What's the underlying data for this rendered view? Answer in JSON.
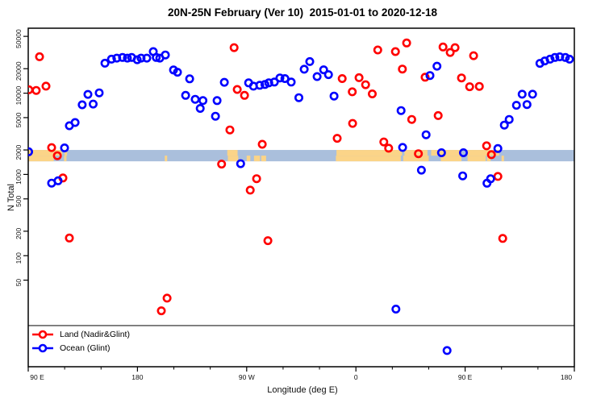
{
  "title": "20N-25N February (Ver 10)  2015-01-01 to 2020-12-18",
  "legend": {
    "items": [
      {
        "label": "Land (Nadir&Glint)",
        "color": "#ff0000"
      },
      {
        "label": "Ocean (Glint)",
        "color": "#0000ff"
      }
    ]
  },
  "chart_data": {
    "type": "scatter",
    "title": "20N-25N February (Ver 10)  2015-01-01 to 2020-12-18",
    "xlabel": "Longitude (deg E)",
    "ylabel": "N Total",
    "marker": {
      "shape": "open-circle",
      "radius": 4.2,
      "stroke_width": 2.6
    },
    "x_axis": {
      "min": 90,
      "max": 540,
      "minor_tick_step": 30,
      "major_ticks": [
        {
          "deg": 90,
          "label": "90 E"
        },
        {
          "deg": 180,
          "label": "180"
        },
        {
          "deg": 270,
          "label": "90 W"
        },
        {
          "deg": 360,
          "label": "0"
        },
        {
          "deg": 450,
          "label": "90 E"
        },
        {
          "deg": 540,
          "label": "180"
        }
      ]
    },
    "y_axis": {
      "scale": "log",
      "ylim": [
        4.3,
        63000
      ],
      "ticks": [
        50000,
        20000,
        10000,
        5000,
        2000,
        1000,
        500,
        200,
        100,
        50
      ]
    },
    "separator_line_value": 13.8,
    "coastline_band": {
      "comment": "thin land/ocean strip map of 20N-25N drawn across the plot",
      "value_top": 2000,
      "value_bottom": 1450,
      "ocean_color": "#aabfdc",
      "land_color": "#fbd488",
      "upper_land_segments_deg": [
        [
          90,
          118
        ],
        [
          120,
          122
        ],
        [
          254,
          262.5
        ],
        [
          344,
          398
        ],
        [
          400,
          419
        ],
        [
          422,
          447
        ],
        [
          452,
          478
        ]
      ],
      "lower_land_segments_deg": [
        [
          90,
          111
        ],
        [
          119.5,
          121.5
        ],
        [
          202.5,
          204.5
        ],
        [
          254.5,
          263
        ],
        [
          270,
          273
        ],
        [
          276,
          281
        ],
        [
          282,
          286
        ],
        [
          343.5,
          397
        ],
        [
          399,
          420
        ],
        [
          430,
          447
        ],
        [
          452,
          467
        ],
        [
          468,
          471
        ],
        [
          480,
          482
        ]
      ]
    },
    "series": [
      {
        "name": "Land (Nadir&Glint)",
        "color": "#ff0000",
        "points": [
          [
            90.5,
            11000
          ],
          [
            96.6,
            10800
          ],
          [
            99.3,
            28100
          ],
          [
            104.6,
            12200
          ],
          [
            109.3,
            2140
          ],
          [
            114.0,
            1700
          ],
          [
            118.6,
            905
          ],
          [
            123.9,
            165
          ],
          [
            199.7,
            21
          ],
          [
            204.4,
            30
          ],
          [
            249.3,
            1340
          ],
          [
            256.2,
            3530
          ],
          [
            259.6,
            36300
          ],
          [
            262.2,
            11100
          ],
          [
            268.2,
            9400
          ],
          [
            272.9,
            640
          ],
          [
            278.2,
            886
          ],
          [
            282.8,
            2350
          ],
          [
            287.5,
            153
          ],
          [
            344.6,
            2780
          ],
          [
            348.7,
            15100
          ],
          [
            357.0,
            10400
          ],
          [
            357.3,
            4250
          ],
          [
            362.6,
            15500
          ],
          [
            368.0,
            12700
          ],
          [
            373.5,
            9800
          ],
          [
            378.0,
            34000
          ],
          [
            383.0,
            2510
          ],
          [
            387.0,
            2100
          ],
          [
            392.6,
            32500
          ],
          [
            398.3,
            19800
          ],
          [
            401.8,
            41500
          ],
          [
            406.0,
            4750
          ],
          [
            411.5,
            1800
          ],
          [
            417.0,
            15700
          ],
          [
            427.8,
            5300
          ],
          [
            431.8,
            37000
          ],
          [
            437.7,
            31700
          ],
          [
            441.7,
            36300
          ],
          [
            447.0,
            15400
          ],
          [
            453.7,
            12000
          ],
          [
            457.0,
            28900
          ],
          [
            461.7,
            12100
          ],
          [
            467.7,
            2250
          ],
          [
            471.7,
            1750
          ],
          [
            477.0,
            945
          ],
          [
            481.0,
            163
          ]
        ]
      },
      {
        "name": "Ocean (Glint)",
        "color": "#0000ff",
        "points": [
          [
            90.3,
            1900
          ],
          [
            109.3,
            782
          ],
          [
            114.6,
            836
          ],
          [
            119.9,
            2120
          ],
          [
            123.9,
            3970
          ],
          [
            128.6,
            4350
          ],
          [
            134.5,
            7200
          ],
          [
            139.2,
            9650
          ],
          [
            143.5,
            7350
          ],
          [
            148.5,
            10100
          ],
          [
            153.2,
            23400
          ],
          [
            158.6,
            26200
          ],
          [
            163.0,
            27000
          ],
          [
            167.7,
            27500
          ],
          [
            171.7,
            27000
          ],
          [
            175.2,
            27500
          ],
          [
            179.8,
            25800
          ],
          [
            183.0,
            27000
          ],
          [
            187.7,
            27000
          ],
          [
            193.0,
            32500
          ],
          [
            195.5,
            27500
          ],
          [
            198.4,
            27000
          ],
          [
            203.0,
            29500
          ],
          [
            209.7,
            19300
          ],
          [
            213.0,
            18100
          ],
          [
            219.7,
            9400
          ],
          [
            223.0,
            15000
          ],
          [
            227.6,
            8400
          ],
          [
            231.7,
            6500
          ],
          [
            234.0,
            8100
          ],
          [
            244.3,
            5200
          ],
          [
            245.6,
            8100
          ],
          [
            251.6,
            13600
          ],
          [
            265.0,
            1355
          ],
          [
            271.6,
            13400
          ],
          [
            275.6,
            12200
          ],
          [
            280.8,
            12500
          ],
          [
            285.0,
            12800
          ],
          [
            288.2,
            13400
          ],
          [
            292.8,
            13700
          ],
          [
            297.4,
            15400
          ],
          [
            301.5,
            15100
          ],
          [
            306.7,
            13700
          ],
          [
            313.0,
            8800
          ],
          [
            317.4,
            19700
          ],
          [
            322.0,
            24500
          ],
          [
            328.0,
            16000
          ],
          [
            333.4,
            19400
          ],
          [
            337.4,
            16900
          ],
          [
            342.0,
            9200
          ],
          [
            393.0,
            22
          ],
          [
            397.2,
            6100
          ],
          [
            398.5,
            2150
          ],
          [
            414.0,
            1130
          ],
          [
            417.8,
            3080
          ],
          [
            421.0,
            16500
          ],
          [
            426.8,
            21500
          ],
          [
            430.5,
            1850
          ],
          [
            435.1,
            6.8
          ],
          [
            448.0,
            960
          ],
          [
            448.6,
            1850
          ],
          [
            468.0,
            780
          ],
          [
            471.0,
            885
          ],
          [
            477.0,
            2080
          ],
          [
            482.3,
            4050
          ],
          [
            486.3,
            4750
          ],
          [
            492.3,
            7100
          ],
          [
            497.0,
            9700
          ],
          [
            501.0,
            7250
          ],
          [
            505.6,
            9700
          ],
          [
            511.6,
            23300
          ],
          [
            515.6,
            24900
          ],
          [
            520.0,
            26200
          ],
          [
            524.0,
            27500
          ],
          [
            528.0,
            28000
          ],
          [
            532.6,
            27500
          ],
          [
            536.0,
            26200
          ]
        ]
      }
    ]
  }
}
